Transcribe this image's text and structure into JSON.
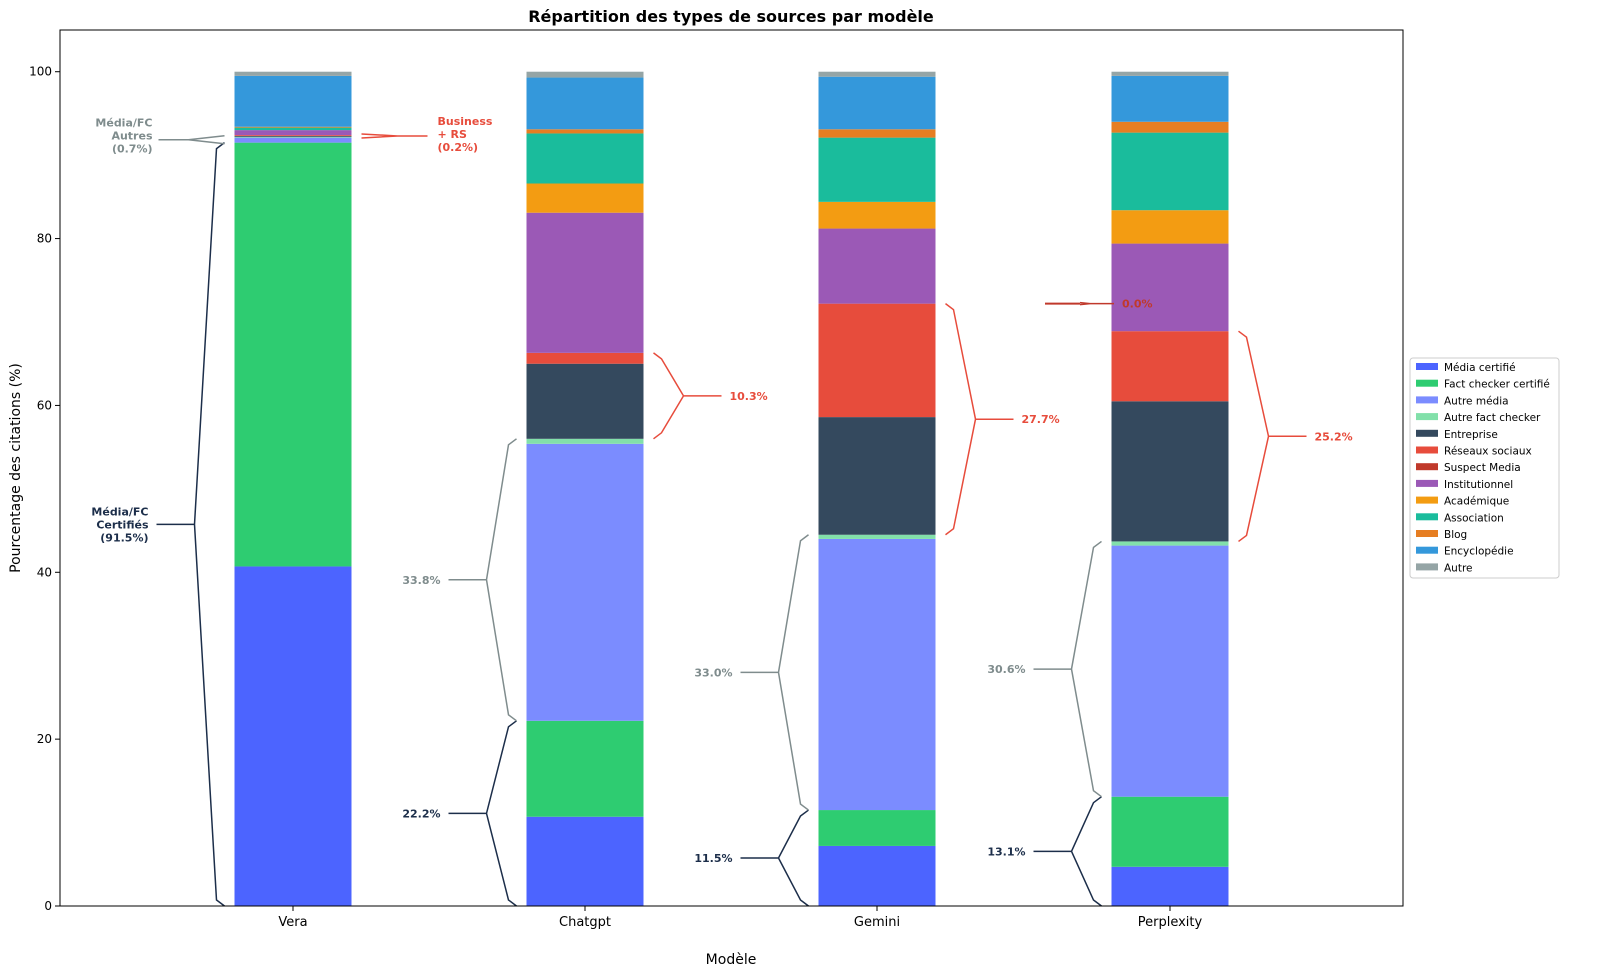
{
  "chart_data": {
    "type": "bar",
    "stacked": true,
    "title": "Répartition des types de sources par modèle",
    "xlabel": "Modèle",
    "ylabel": "Pourcentage des citations (%)",
    "ylim": [
      0,
      105
    ],
    "yticks": [
      0,
      20,
      40,
      60,
      80,
      100
    ],
    "categories": [
      "Vera",
      "Chatgpt",
      "Gemini",
      "Perplexity"
    ],
    "legend_position": "right",
    "series": [
      {
        "name": "Média certifié",
        "color": "#4c64ff",
        "values": [
          40.7,
          10.7,
          7.2,
          4.7
        ]
      },
      {
        "name": "Fact checker certifié",
        "color": "#2ecc71",
        "values": [
          50.8,
          11.5,
          4.3,
          8.4
        ]
      },
      {
        "name": "Autre média",
        "color": "#7b8cff",
        "values": [
          0.6,
          33.2,
          32.5,
          30.1
        ]
      },
      {
        "name": "Autre fact checker",
        "color": "#82e0aa",
        "values": [
          0.1,
          0.6,
          0.5,
          0.5
        ]
      },
      {
        "name": "Entreprise",
        "color": "#34495e",
        "values": [
          0.1,
          9.0,
          14.1,
          16.8
        ]
      },
      {
        "name": "Réseaux sociaux",
        "color": "#e74c3c",
        "values": [
          0.1,
          1.3,
          13.6,
          8.4
        ]
      },
      {
        "name": "Suspect Media",
        "color": "#c0392b",
        "values": [
          0.0,
          0.0,
          0.0,
          0.0
        ]
      },
      {
        "name": "Institutionnel",
        "color": "#9b59b6",
        "values": [
          0.6,
          16.8,
          9.0,
          10.5
        ]
      },
      {
        "name": "Académique",
        "color": "#f39c12",
        "values": [
          0.0,
          3.5,
          3.2,
          4.0
        ]
      },
      {
        "name": "Association",
        "color": "#1abc9c",
        "values": [
          0.3,
          6.0,
          7.7,
          9.3
        ]
      },
      {
        "name": "Blog",
        "color": "#e67e22",
        "values": [
          0.1,
          0.5,
          1.0,
          1.3
        ]
      },
      {
        "name": "Encyclopédie",
        "color": "#3498db",
        "values": [
          6.1,
          6.2,
          6.3,
          5.5
        ]
      },
      {
        "name": "Autre",
        "color": "#95a5a6",
        "values": [
          0.5,
          0.7,
          0.6,
          0.5
        ]
      }
    ],
    "annotations": {
      "certified": {
        "color": "#1c2e4a",
        "labels": [
          "Média/FC\nCertifiés\n(91.5%)",
          "22.2%",
          "11.5%",
          "13.1%"
        ]
      },
      "other_media": {
        "color": "#7f8c8d",
        "labels": [
          "Média/FC\nAutres\n(0.7%)",
          "33.8%",
          "33.0%",
          "30.6%"
        ]
      },
      "business_rs": {
        "color": "#e74c3c",
        "labels": [
          "Business\n+ RS\n(0.2%)",
          "10.3%",
          "27.7%",
          "25.2%"
        ]
      },
      "suspect": {
        "color": "#c0392b",
        "labels": [
          "",
          "",
          "",
          "0.0%"
        ]
      }
    }
  }
}
